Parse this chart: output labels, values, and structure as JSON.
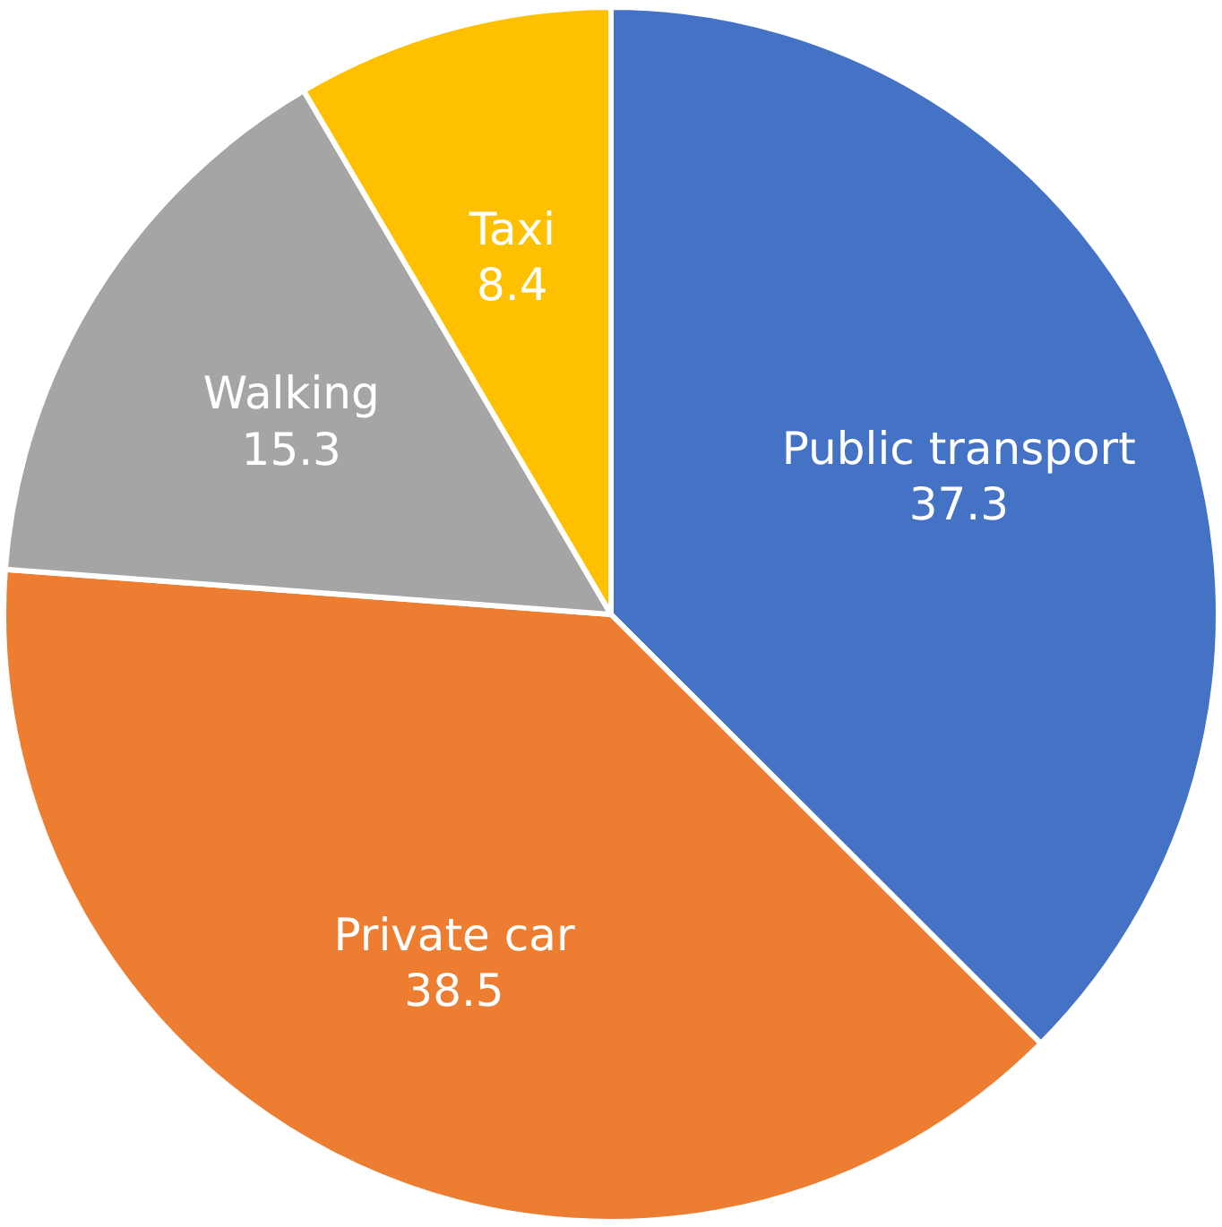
{
  "chart_data": {
    "type": "pie",
    "categories": [
      "Public transport",
      "Private car",
      "Walking",
      "Taxi"
    ],
    "values": [
      37.3,
      38.5,
      15.3,
      8.4
    ],
    "colors": [
      "#4472c4",
      "#ed7d31",
      "#a5a5a5",
      "#ffc000"
    ],
    "data_labels": true
  }
}
